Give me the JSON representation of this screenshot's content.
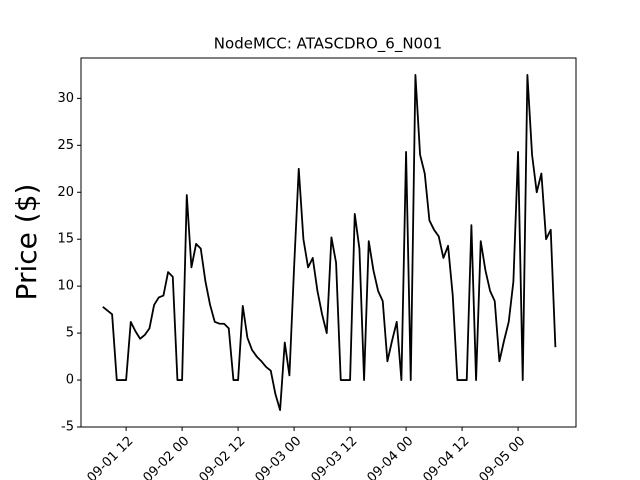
{
  "chart_data": {
    "type": "line",
    "title": "NodeMCC: ATASCDRO_6_N001",
    "y_label": "Price ($)",
    "color": "#000000",
    "x": [
      "09-01 07",
      "09-01 08",
      "09-01 09",
      "09-01 10",
      "09-01 11",
      "09-01 12",
      "09-01 13",
      "09-01 14",
      "09-01 15",
      "09-01 16",
      "09-01 17",
      "09-01 18",
      "09-01 19",
      "09-01 20",
      "09-01 21",
      "09-01 22",
      "09-01 23",
      "09-02 00",
      "09-02 01",
      "09-02 02",
      "09-02 03",
      "09-02 04",
      "09-02 05",
      "09-02 06",
      "09-02 07",
      "09-02 08",
      "09-02 09",
      "09-02 10",
      "09-02 11",
      "09-02 12",
      "09-02 13",
      "09-02 14",
      "09-02 15",
      "09-02 16",
      "09-02 17",
      "09-02 18",
      "09-02 19",
      "09-02 20",
      "09-02 21",
      "09-02 22",
      "09-02 23",
      "09-03 00",
      "09-03 01",
      "09-03 02",
      "09-03 03",
      "09-03 04",
      "09-03 05",
      "09-03 06",
      "09-03 07",
      "09-03 08",
      "09-03 09",
      "09-03 10",
      "09-03 11",
      "09-03 12",
      "09-03 13",
      "09-03 14",
      "09-03 15",
      "09-03 16",
      "09-03 17",
      "09-03 18",
      "09-03 19",
      "09-03 20",
      "09-03 21",
      "09-03 22",
      "09-03 23",
      "09-04 00",
      "09-04 01",
      "09-04 02",
      "09-04 03",
      "09-04 04",
      "09-04 05",
      "09-04 06",
      "09-04 07",
      "09-04 08",
      "09-04 09",
      "09-04 10",
      "09-04 11",
      "09-04 12",
      "09-04 13",
      "09-04 14",
      "09-04 15",
      "09-04 16",
      "09-04 17",
      "09-04 18",
      "09-04 19",
      "09-04 20",
      "09-04 21",
      "09-04 22",
      "09-04 23",
      "09-05 00",
      "09-05 01",
      "09-05 02",
      "09-05 03",
      "09-05 04",
      "09-05 05",
      "09-05 06",
      "09-05 07",
      "09-05 08"
    ],
    "values": [
      7.8,
      7.4,
      7.0,
      0,
      0,
      0,
      6.2,
      5.2,
      4.4,
      4.8,
      5.5,
      8.0,
      8.8,
      9.0,
      11.5,
      11.0,
      0,
      0,
      19.7,
      12,
      14.5,
      14,
      10.5,
      8,
      6.2,
      6.0,
      6.0,
      5.5,
      0,
      0,
      7.9,
      4.5,
      3.2,
      2.5,
      2.0,
      1.4,
      1.0,
      -1.5,
      -3.2,
      4.0,
      0.5,
      12,
      22.5,
      15,
      12,
      13,
      9.5,
      7,
      5,
      15.2,
      12.5,
      0,
      0,
      0,
      17.7,
      14,
      0,
      14.8,
      11.7,
      9.5,
      8.4,
      2,
      4.2,
      6.2,
      0,
      24.3,
      0,
      32.5,
      24,
      22,
      17,
      16,
      15.3,
      13,
      14.3,
      9,
      0,
      0,
      0,
      16.5,
      0,
      14.8,
      11.7,
      9.5,
      8.4,
      2,
      4.2,
      6.2,
      10.5,
      24.3,
      0,
      32.5,
      24,
      20,
      22,
      15,
      16.0,
      3.5
    ],
    "xlim": [
      "09-01 02:20",
      "09-05 12:25"
    ],
    "xticks": [
      "09-01 12",
      "09-02 00",
      "09-02 12",
      "09-03 00",
      "09-03 12",
      "09-04 00",
      "09-04 12",
      "09-05 00"
    ],
    "ylim": [
      -5,
      34.3
    ],
    "yticks": [
      -5,
      0,
      5,
      10,
      15,
      20,
      25,
      30
    ]
  }
}
